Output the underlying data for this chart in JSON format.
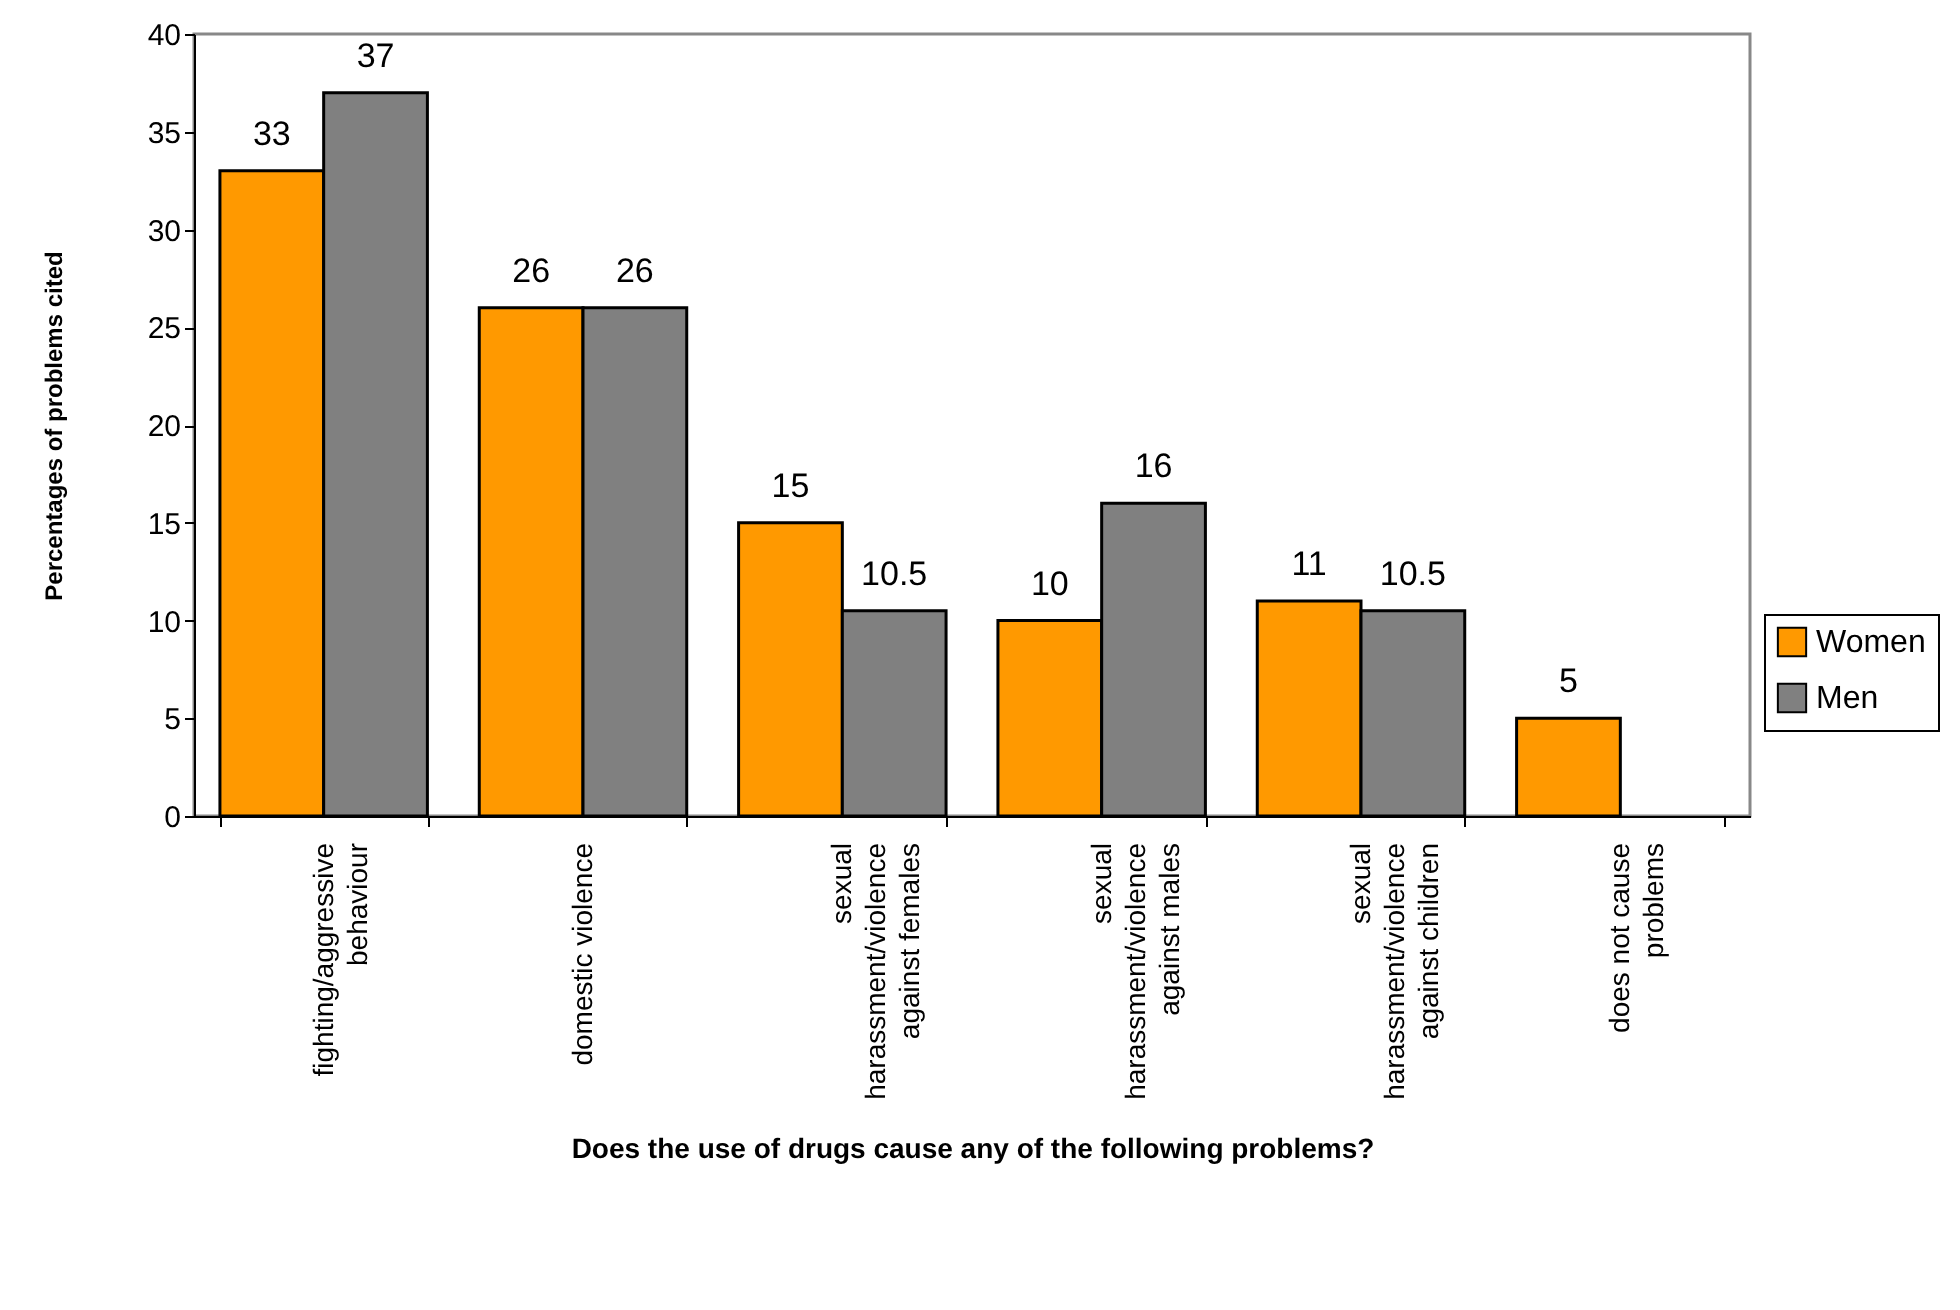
{
  "chart_data": {
    "type": "bar",
    "xlabel": "Does the use of drugs cause any of the following problems?",
    "ylabel": "Percentages of problems cited",
    "categories": [
      "fighting/aggressive\nbehaviour",
      "domestic violence",
      "sexual\nharassment/violence\nagainst females",
      "sexual\nharassment/violence\nagainst males",
      "sexual\nharassment/violence\nagainst children",
      "does not cause\nproblems"
    ],
    "series": [
      {
        "name": "Women",
        "color": "#ff9900",
        "values": [
          33,
          26,
          15,
          10,
          11,
          5
        ]
      },
      {
        "name": "Men",
        "color": "#808080",
        "values": [
          37,
          26,
          10.5,
          16,
          10.5,
          null
        ]
      }
    ],
    "ylim": [
      0,
      40
    ],
    "yticks": [
      0,
      5,
      10,
      15,
      20,
      25,
      30,
      35,
      40
    ],
    "grid": false,
    "legend": "right",
    "data_labels": true
  }
}
